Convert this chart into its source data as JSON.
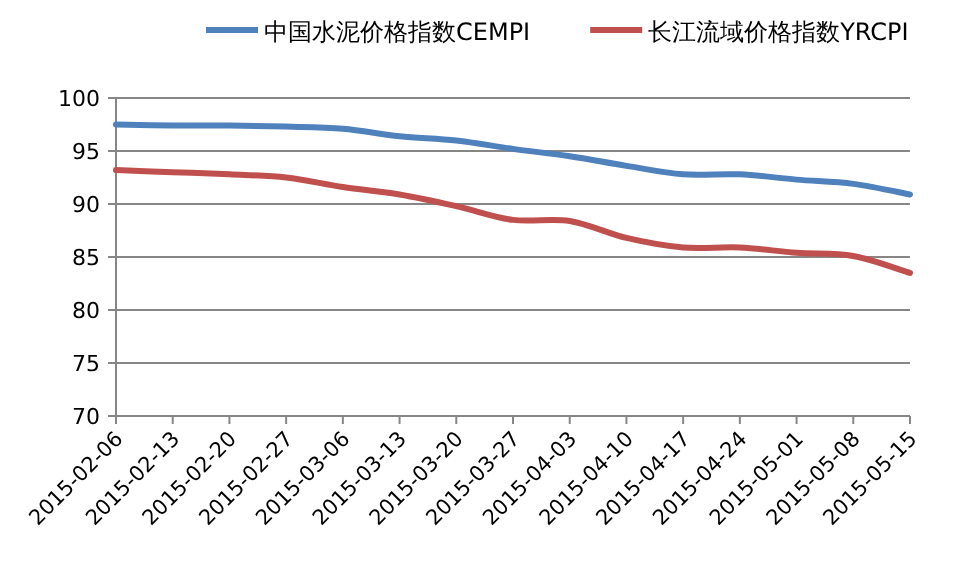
{
  "chart_data": {
    "type": "line",
    "categories": [
      "2015-02-06",
      "2015-02-13",
      "2015-02-20",
      "2015-02-27",
      "2015-03-06",
      "2015-03-13",
      "2015-03-20",
      "2015-03-27",
      "2015-04-03",
      "2015-04-10",
      "2015-04-17",
      "2015-04-24",
      "2015-05-01",
      "2015-05-08",
      "2015-05-15"
    ],
    "series": [
      {
        "name": "中国水泥价格指数CEMPI",
        "color": "#4f81bd",
        "values": [
          97.5,
          97.4,
          97.4,
          97.3,
          97.1,
          96.4,
          96.0,
          95.2,
          94.5,
          93.6,
          92.8,
          92.8,
          92.3,
          91.9,
          90.9
        ]
      },
      {
        "name": "长江流域价格指数YRCPI",
        "color": "#c0504d",
        "values": [
          93.2,
          93.0,
          92.8,
          92.5,
          91.6,
          90.9,
          89.8,
          88.5,
          88.4,
          86.8,
          85.9,
          85.9,
          85.4,
          85.1,
          83.5
        ]
      }
    ],
    "ylim": [
      70,
      100
    ],
    "yticks": [
      70,
      75,
      80,
      85,
      90,
      95,
      100
    ],
    "grid": "y",
    "legend": "top"
  }
}
